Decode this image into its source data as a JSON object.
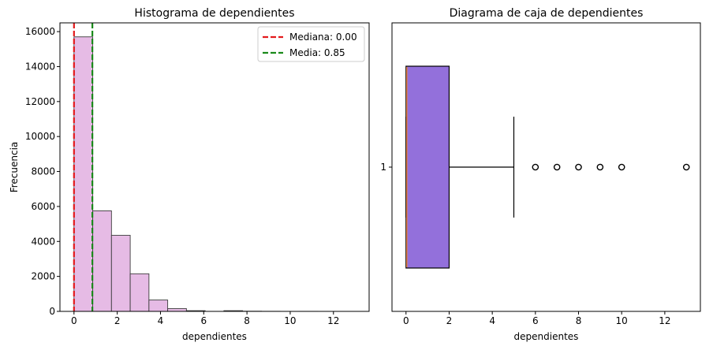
{
  "chart_data": [
    {
      "type": "bar",
      "subtype": "histogram",
      "title": "Histograma de dependientes",
      "xlabel": "dependientes",
      "ylabel": "Frecuencia",
      "xlim": [
        -0.65,
        13.65
      ],
      "ylim": [
        0,
        16500
      ],
      "xticks": [
        0,
        2,
        4,
        6,
        8,
        10,
        12
      ],
      "yticks": [
        0,
        2000,
        4000,
        6000,
        8000,
        10000,
        12000,
        14000,
        16000
      ],
      "bin_edges": [
        0,
        0.8667,
        1.7333,
        2.6,
        3.4667,
        4.3333,
        5.2,
        6.0667,
        6.9333,
        7.8,
        8.6667,
        9.5333,
        10.4,
        11.2667,
        12.1333,
        13
      ],
      "counts": [
        15700,
        5750,
        4350,
        2150,
        650,
        160,
        40,
        0,
        40,
        10,
        5,
        0,
        3,
        0,
        1
      ],
      "bar_color": "#e6bbe5",
      "reference_lines": [
        {
          "label": "Mediana: 0.00",
          "value": 0.0,
          "color": "#e31a1c",
          "style": "dashed"
        },
        {
          "label": "Media: 0.85",
          "value": 0.85,
          "color": "#1a8a1a",
          "style": "dashed"
        }
      ],
      "legend_position": "top-right",
      "grid": false
    },
    {
      "type": "boxplot",
      "orientation": "horizontal",
      "title": "Diagrama de caja de dependientes",
      "xlabel": "dependientes",
      "ylabel": "",
      "xlim": [
        -0.65,
        13.65
      ],
      "xticks": [
        0,
        2,
        4,
        6,
        8,
        10,
        12
      ],
      "yticks": [
        1
      ],
      "box": {
        "min": 0,
        "q1": 0,
        "median": 0,
        "q3": 2,
        "max": 5
      },
      "outliers": [
        6,
        7,
        8,
        9,
        10,
        13
      ],
      "box_color": "#9370db",
      "median_color": "#e07b39",
      "grid": false
    }
  ]
}
